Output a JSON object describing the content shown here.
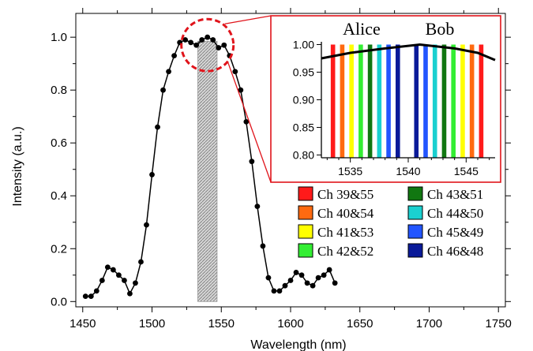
{
  "chart_data": [
    {
      "type": "line",
      "xlabel": "Wavelength (nm)",
      "ylabel": "Intensity (a.u.)",
      "xlim": [
        1445,
        1755
      ],
      "ylim": [
        -0.02,
        1.09
      ],
      "x_ticks": [
        1450,
        1500,
        1550,
        1600,
        1650,
        1700,
        1750
      ],
      "y_ticks": [
        0.0,
        0.2,
        0.4,
        0.6,
        0.8,
        1.0
      ],
      "grid": false,
      "shaded_band": {
        "x_start": 1533,
        "x_end": 1547
      },
      "highlight_circle_center": {
        "x": 1540,
        "y": 0.97
      },
      "series": [
        {
          "color": "#000000",
          "marker": "circle",
          "x": [
            1452,
            1456,
            1460,
            1464,
            1468,
            1472,
            1476,
            1480,
            1484,
            1488,
            1492,
            1496,
            1500,
            1504,
            1508,
            1512,
            1516,
            1520,
            1524,
            1528,
            1532,
            1536,
            1540,
            1544,
            1548,
            1552,
            1556,
            1560,
            1564,
            1568,
            1572,
            1576,
            1580,
            1584,
            1588,
            1592,
            1596,
            1600,
            1604,
            1608,
            1612,
            1616,
            1620,
            1624,
            1628,
            1632
          ],
          "y": [
            0.02,
            0.02,
            0.04,
            0.08,
            0.13,
            0.12,
            0.1,
            0.08,
            0.03,
            0.07,
            0.15,
            0.29,
            0.48,
            0.66,
            0.8,
            0.87,
            0.93,
            0.98,
            0.99,
            0.98,
            0.97,
            0.99,
            1.0,
            0.99,
            0.96,
            0.97,
            0.93,
            0.87,
            0.8,
            0.68,
            0.53,
            0.36,
            0.21,
            0.09,
            0.04,
            0.04,
            0.06,
            0.08,
            0.11,
            0.1,
            0.07,
            0.06,
            0.09,
            0.1,
            0.12,
            0.07
          ]
        }
      ]
    },
    {
      "type": "line",
      "role": "inset",
      "top_labels": [
        "Alice",
        "Bob"
      ],
      "xlim": [
        1532.5,
        1547.5
      ],
      "ylim": [
        0.795,
        1.005
      ],
      "x_ticks": [
        1535,
        1540,
        1545
      ],
      "y_ticks": [
        0.8,
        0.85,
        0.9,
        0.95,
        1.0
      ],
      "channel_bars": [
        {
          "x": 1533.5,
          "color": "#ff1a1a"
        },
        {
          "x": 1534.3,
          "color": "#ff6a10"
        },
        {
          "x": 1535.1,
          "color": "#ffff00"
        },
        {
          "x": 1535.9,
          "color": "#33ee33"
        },
        {
          "x": 1536.7,
          "color": "#117711"
        },
        {
          "x": 1537.5,
          "color": "#1ad0d0"
        },
        {
          "x": 1538.3,
          "color": "#2255ff"
        },
        {
          "x": 1539.1,
          "color": "#0a1a99"
        },
        {
          "x": 1540.7,
          "color": "#0a1a99"
        },
        {
          "x": 1541.5,
          "color": "#2255ff"
        },
        {
          "x": 1542.3,
          "color": "#1ad0d0"
        },
        {
          "x": 1543.1,
          "color": "#117711"
        },
        {
          "x": 1543.9,
          "color": "#33ee33"
        },
        {
          "x": 1544.7,
          "color": "#ffff00"
        },
        {
          "x": 1545.5,
          "color": "#ff6a10"
        },
        {
          "x": 1546.3,
          "color": "#ff1a1a"
        }
      ],
      "series": [
        {
          "color": "#000000",
          "x": [
            1532.5,
            1535,
            1538,
            1541,
            1544,
            1546,
            1547.5
          ],
          "y": [
            0.975,
            0.985,
            0.993,
            1.0,
            0.993,
            0.985,
            0.972
          ]
        }
      ]
    }
  ],
  "legend": {
    "placement": "right-center",
    "entries": [
      {
        "label": "Ch 39&55",
        "color": "#ff1a1a"
      },
      {
        "label": "Ch 43&51",
        "color": "#117711"
      },
      {
        "label": "Ch 40&54",
        "color": "#ff6a10"
      },
      {
        "label": "Ch 44&50",
        "color": "#1ad0d0"
      },
      {
        "label": "Ch 41&53",
        "color": "#ffff00"
      },
      {
        "label": "Ch 45&49",
        "color": "#2255ff"
      },
      {
        "label": "Ch 42&52",
        "color": "#33ee33"
      },
      {
        "label": "Ch 46&48",
        "color": "#0a1a99"
      }
    ]
  },
  "colors": {
    "callout": "#e0141b",
    "band_fill": "#a8a8a8"
  }
}
